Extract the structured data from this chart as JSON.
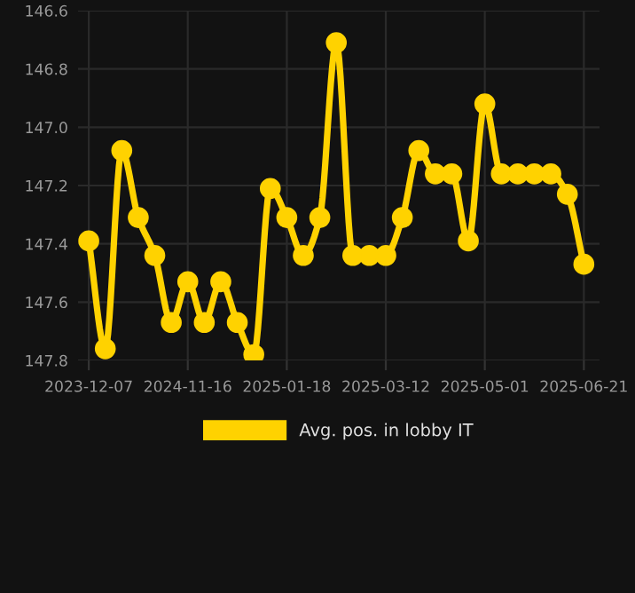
{
  "chart_data": {
    "type": "line",
    "categories": [
      "2023-12-07",
      null,
      null,
      null,
      null,
      null,
      "2024-11-16",
      null,
      null,
      null,
      null,
      null,
      "2025-01-18",
      null,
      null,
      null,
      null,
      null,
      "2025-03-12",
      null,
      null,
      null,
      null,
      null,
      "2025-05-01",
      null,
      null,
      null,
      null,
      null,
      "2025-06-21"
    ],
    "series": [
      {
        "name": "Avg. pos. in lobby IT",
        "color": "#ffd200",
        "values": [
          147.39,
          147.76,
          147.08,
          147.31,
          147.44,
          147.67,
          147.53,
          147.67,
          147.53,
          147.67,
          147.78,
          147.21,
          147.31,
          147.44,
          147.31,
          146.71,
          147.44,
          147.44,
          147.44,
          147.31,
          147.08,
          147.16,
          147.16,
          147.39,
          146.92,
          147.16,
          147.16,
          147.16,
          147.16,
          147.23,
          147.47
        ]
      }
    ],
    "ylim": [
      147.8,
      146.6
    ],
    "yticks": [
      146.6,
      146.8,
      {
        "value": 147,
        "label": "147.0"
      },
      147.2,
      147.4,
      147.6,
      147.8
    ],
    "grid": true,
    "legend": "bottom",
    "marker": "circle",
    "line_style": "solid"
  }
}
